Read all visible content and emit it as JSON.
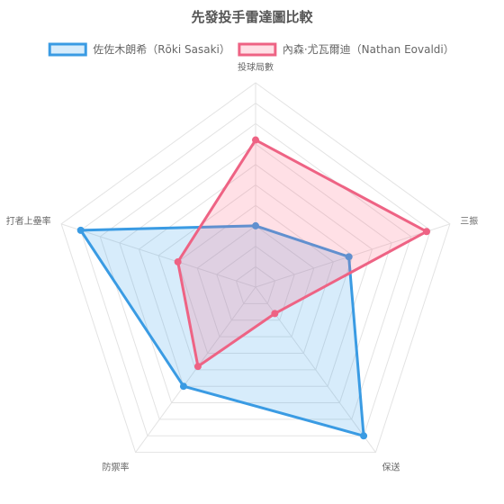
{
  "chart_data": {
    "type": "radar",
    "title": "先發投手雷達圖比較",
    "axes": [
      "投球局數",
      "三振",
      "保送",
      "防禦率",
      "打者上壘率"
    ],
    "range": [
      0,
      10
    ],
    "grid_rings": 10,
    "legend_position": "top",
    "series": [
      {
        "name": "佐佐木朗希（Rōki Sasaki）",
        "values": [
          3.0,
          4.8,
          9.0,
          6.0,
          9.0
        ],
        "color": "#3a9be3",
        "fill": "rgba(54, 162, 235, 0.2)"
      },
      {
        "name": "內森·尤瓦爾迪（Nathan Eovaldi）",
        "values": [
          7.2,
          8.8,
          1.6,
          4.8,
          4.0
        ],
        "color": "#ee6384",
        "fill": "rgba(255, 99, 132, 0.2)"
      }
    ]
  }
}
